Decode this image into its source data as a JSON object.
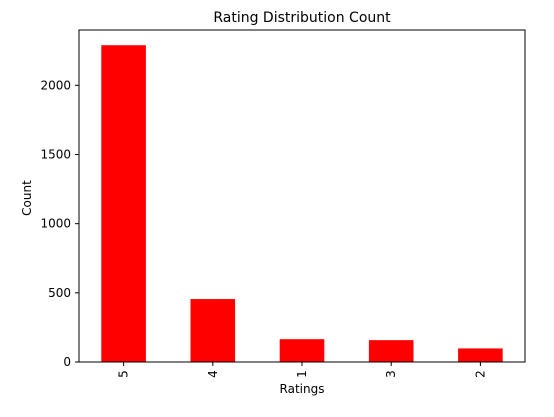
{
  "chart_data": {
    "type": "bar",
    "title": "Rating Distribution Count",
    "xlabel": "Ratings",
    "ylabel": "Count",
    "categories": [
      "5",
      "4",
      "1",
      "3",
      "2"
    ],
    "values": [
      2290,
      455,
      165,
      158,
      98
    ],
    "ylim": [
      0,
      2400
    ],
    "yticks": [
      0,
      500,
      1000,
      1500,
      2000
    ],
    "bar_color": "#ff0000",
    "grid": false,
    "x_tick_rotation": "vertical"
  }
}
